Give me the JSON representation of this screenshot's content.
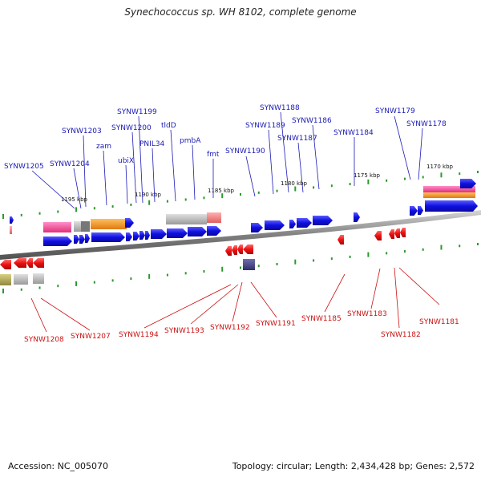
{
  "title": "Synechococcus sp. WH 8102, complete genome",
  "footer": {
    "accession": "Accession: NC_005070",
    "summary": "Topology: circular; Length: 2,434,428 bp; Genes: 2,572"
  },
  "colors": {
    "forward_gene": "#1010e0",
    "reverse_gene": "#ee1111",
    "forward_label": "#1a1ab8",
    "reverse_label": "#cc1111",
    "tick": "#2a9a2a",
    "backbone": "#808080"
  },
  "scale_labels": [
    "1195 kbp",
    "1190 kbp",
    "1185 kbp",
    "1180 kbp",
    "1175 kbp",
    "1170 kbp"
  ],
  "forward_genes": [
    {
      "label": "SYNW1205"
    },
    {
      "label": "SYNW1204"
    },
    {
      "label": "SYNW1203"
    },
    {
      "label": "zam"
    },
    {
      "label": "ubiX"
    },
    {
      "label": "SYNW1200"
    },
    {
      "label": "SYNW1199"
    },
    {
      "label": "PNIL34"
    },
    {
      "label": "tldD"
    },
    {
      "label": "pmbA"
    },
    {
      "label": "fmt"
    },
    {
      "label": "SYNW1190"
    },
    {
      "label": "SYNW1189"
    },
    {
      "label": "SYNW1188"
    },
    {
      "label": "SYNW1187"
    },
    {
      "label": "SYNW1186"
    },
    {
      "label": "SYNW1184"
    },
    {
      "label": "SYNW1179"
    },
    {
      "label": "SYNW1178"
    }
  ],
  "reverse_genes": [
    {
      "label": "SYNW1208"
    },
    {
      "label": "SYNW1207"
    },
    {
      "label": "SYNW1194"
    },
    {
      "label": "SYNW1193"
    },
    {
      "label": "SYNW1192"
    },
    {
      "label": "SYNW1191"
    },
    {
      "label": "SYNW1185"
    },
    {
      "label": "SYNW1183"
    },
    {
      "label": "SYNW1182"
    },
    {
      "label": "SYNW1181"
    }
  ]
}
